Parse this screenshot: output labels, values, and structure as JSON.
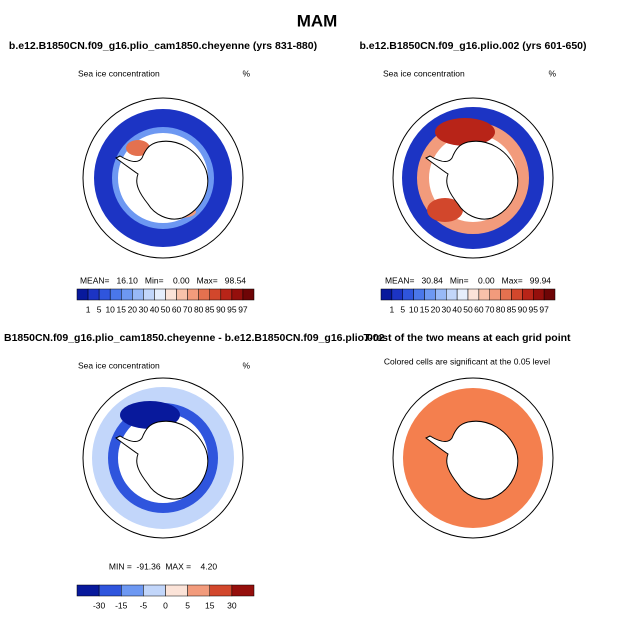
{
  "title": "MAM",
  "panels": [
    {
      "title": "b.e12.B1850CN.f09_g16.plio_cam1850.cheyenne (yrs 831-880)",
      "left_label": "Sea ice concentration",
      "right_label": "%",
      "stats": "MEAN=   16.10   Min=    0.00   Max=   98.54",
      "colorbar": {
        "ticks": [
          1,
          5,
          10,
          15,
          20,
          30,
          40,
          50,
          60,
          70,
          80,
          85,
          90,
          95,
          97
        ],
        "colors": [
          "#08199c",
          "#1c34c4",
          "#2f55dd",
          "#4a77ea",
          "#6d98f2",
          "#98b9f7",
          "#c2d6fa",
          "#e6eefc",
          "#fbe3d8",
          "#f8c2aa",
          "#f29b7c",
          "#e4714f",
          "#d2472c",
          "#b82418",
          "#950f0c",
          "#6e0506"
        ]
      }
    },
    {
      "title": "b.e12.B1850CN.f09_g16.plio.002 (yrs 601-650)",
      "left_label": "Sea ice concentration",
      "right_label": "%",
      "stats": "MEAN=   30.84   Min=    0.00   Max=   99.94",
      "colorbar": {
        "ticks": [
          1,
          5,
          10,
          15,
          20,
          30,
          40,
          50,
          60,
          70,
          80,
          85,
          90,
          95,
          97
        ],
        "colors": [
          "#08199c",
          "#1c34c4",
          "#2f55dd",
          "#4a77ea",
          "#6d98f2",
          "#98b9f7",
          "#c2d6fa",
          "#e6eefc",
          "#fbe3d8",
          "#f8c2aa",
          "#f29b7c",
          "#e4714f",
          "#d2472c",
          "#b82418",
          "#950f0c",
          "#6e0506"
        ]
      }
    },
    {
      "title": "B1850CN.f09_g16.plio_cam1850.cheyenne - b.e12.B1850CN.f09_g16.plio.002",
      "left_label": "Sea ice concentration",
      "right_label": "%",
      "stats": "MIN =  -91.36  MAX =    4.20",
      "colorbar": {
        "ticks": [
          -30,
          -15,
          -5,
          0,
          5,
          15,
          30
        ],
        "colors": [
          "#08199c",
          "#2f55dd",
          "#6d98f2",
          "#c2d6fa",
          "#fbe3d8",
          "#f29b7c",
          "#d2472c",
          "#950f0c"
        ]
      }
    },
    {
      "title": "T-test of the two means at each grid point",
      "subtitle": "Colored cells are significant at the 0.05 level"
    }
  ]
}
